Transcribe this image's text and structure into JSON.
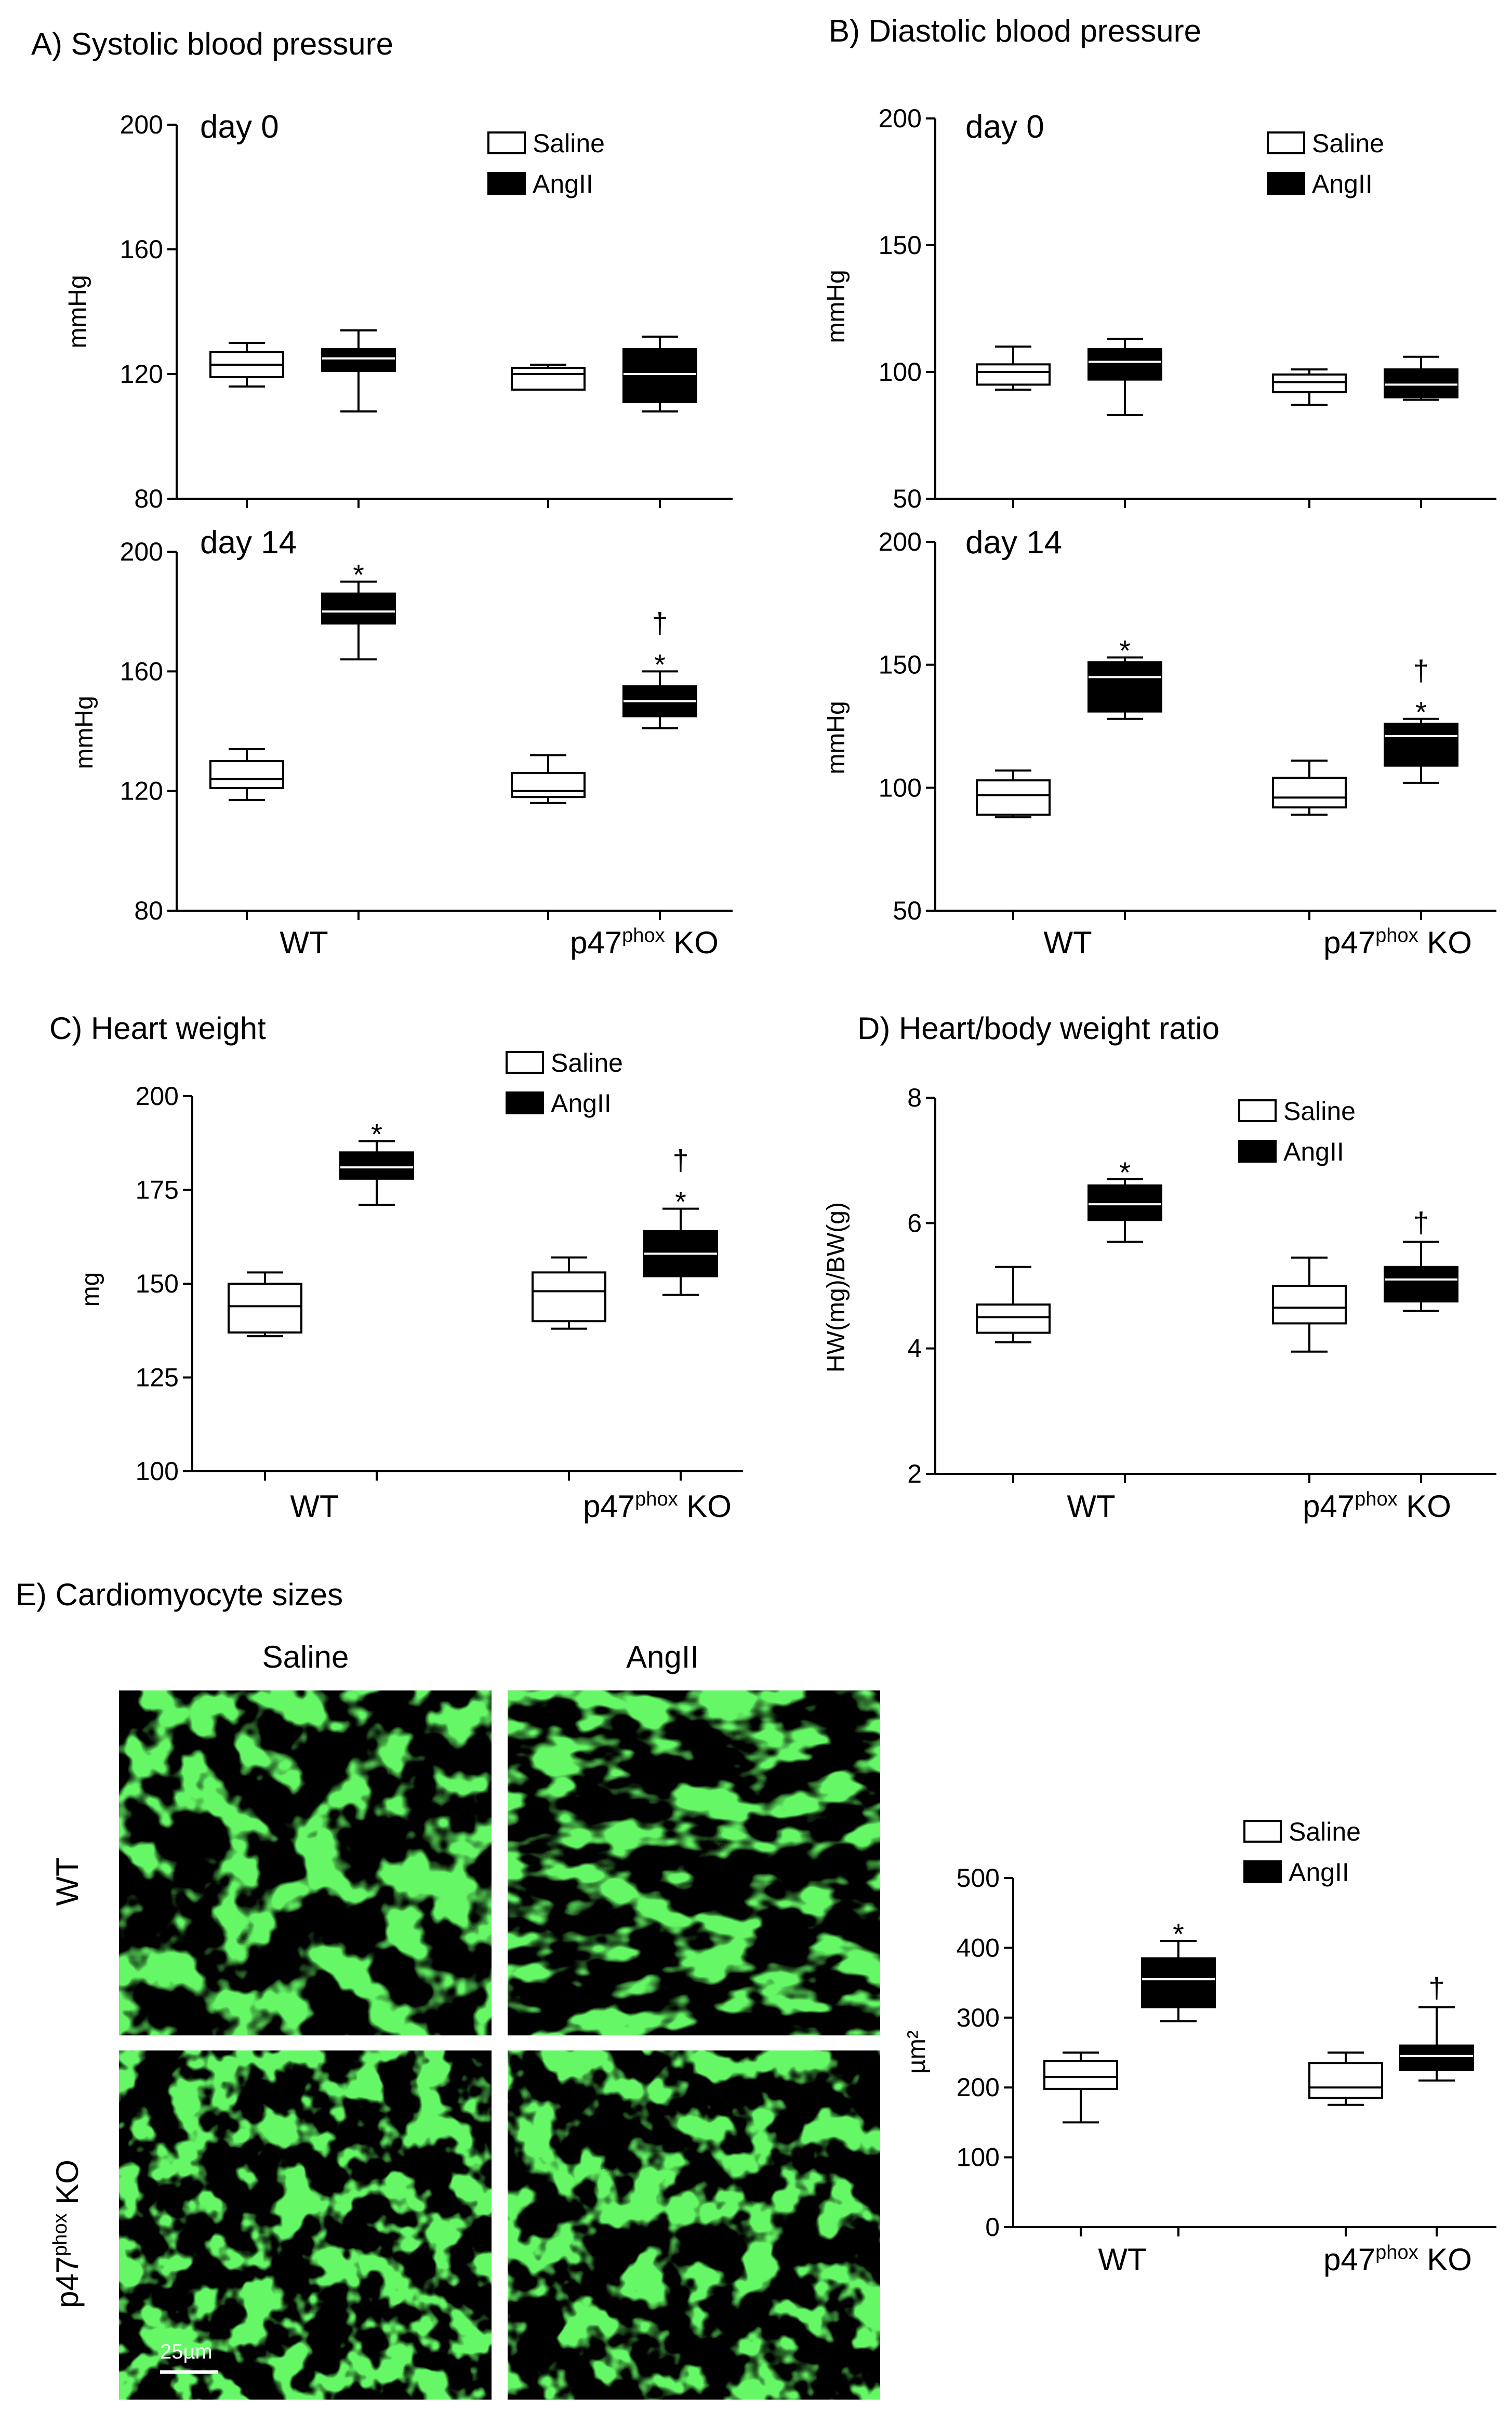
{
  "colors": {
    "saline_fill": "#ffffff",
    "angii_fill": "#000000",
    "stroke": "#000000",
    "micrograph_bg": "#000000",
    "micrograph_tissue": "#22ee22"
  },
  "legend": {
    "saline": "Saline",
    "angii": "AngII"
  },
  "groups": {
    "wt": "WT",
    "ko_base": "p47",
    "ko_sup": "phox",
    "ko_tail": " KO"
  },
  "chart_data": [
    {
      "id": "sbp_day0",
      "type": "box",
      "title": "A) Systolic blood pressure",
      "subtitle": "day 0",
      "ylabel": "mmHg",
      "ylim": [
        80,
        200
      ],
      "yticks": [
        80,
        120,
        160,
        200
      ],
      "show_groups": false,
      "legend": true,
      "boxes": [
        {
          "group": "WT",
          "series": "Saline",
          "min": 116,
          "q1": 119,
          "median": 123,
          "q3": 127,
          "max": 130
        },
        {
          "group": "WT",
          "series": "AngII",
          "min": 108,
          "q1": 121,
          "median": 125,
          "q3": 128,
          "max": 134
        },
        {
          "group": "p47phox KO",
          "series": "Saline",
          "min": 115,
          "q1": 115,
          "median": 120,
          "q3": 122,
          "max": 123
        },
        {
          "group": "p47phox KO",
          "series": "AngII",
          "min": 108,
          "q1": 111,
          "median": 120,
          "q3": 128,
          "max": 132
        }
      ],
      "marks": [
        "",
        "",
        "",
        ""
      ]
    },
    {
      "id": "sbp_day14",
      "type": "box",
      "subtitle": "day 14",
      "ylabel": "mmHg",
      "ylim": [
        80,
        200
      ],
      "yticks": [
        80,
        120,
        160,
        200
      ],
      "show_groups": true,
      "legend": false,
      "boxes": [
        {
          "group": "WT",
          "series": "Saline",
          "min": 117,
          "q1": 121,
          "median": 124,
          "q3": 130,
          "max": 134
        },
        {
          "group": "WT",
          "series": "AngII",
          "min": 164,
          "q1": 176,
          "median": 180,
          "q3": 186,
          "max": 190
        },
        {
          "group": "p47phox KO",
          "series": "Saline",
          "min": 116,
          "q1": 118,
          "median": 120,
          "q3": 126,
          "max": 132
        },
        {
          "group": "p47phox KO",
          "series": "AngII",
          "min": 141,
          "q1": 145,
          "median": 150,
          "q3": 155,
          "max": 160
        }
      ],
      "marks": [
        "",
        "*",
        "",
        "*†"
      ]
    },
    {
      "id": "dbp_day0",
      "type": "box",
      "title": "B) Diastolic blood pressure",
      "subtitle": "day 0",
      "ylabel": "mmHg",
      "ylim": [
        50,
        200
      ],
      "yticks": [
        50,
        100,
        150,
        200
      ],
      "show_groups": false,
      "legend": true,
      "boxes": [
        {
          "group": "WT",
          "series": "Saline",
          "min": 93,
          "q1": 95,
          "median": 100,
          "q3": 103,
          "max": 110
        },
        {
          "group": "WT",
          "series": "AngII",
          "min": 83,
          "q1": 97,
          "median": 104,
          "q3": 109,
          "max": 113
        },
        {
          "group": "p47phox KO",
          "series": "Saline",
          "min": 87,
          "q1": 92,
          "median": 96,
          "q3": 99,
          "max": 101
        },
        {
          "group": "p47phox KO",
          "series": "AngII",
          "min": 89,
          "q1": 90,
          "median": 95,
          "q3": 101,
          "max": 106
        }
      ],
      "marks": [
        "",
        "",
        "",
        ""
      ]
    },
    {
      "id": "dbp_day14",
      "type": "box",
      "subtitle": "day 14",
      "ylabel": "mmHg",
      "ylim": [
        50,
        200
      ],
      "yticks": [
        50,
        100,
        150,
        200
      ],
      "show_groups": true,
      "legend": false,
      "boxes": [
        {
          "group": "WT",
          "series": "Saline",
          "min": 88,
          "q1": 89,
          "median": 97,
          "q3": 103,
          "max": 107
        },
        {
          "group": "WT",
          "series": "AngII",
          "min": 128,
          "q1": 131,
          "median": 145,
          "q3": 151,
          "max": 153
        },
        {
          "group": "p47phox KO",
          "series": "Saline",
          "min": 89,
          "q1": 92,
          "median": 96,
          "q3": 104,
          "max": 111
        },
        {
          "group": "p47phox KO",
          "series": "AngII",
          "min": 102,
          "q1": 109,
          "median": 121,
          "q3": 126,
          "max": 128
        }
      ],
      "marks": [
        "",
        "*",
        "",
        "*†"
      ]
    },
    {
      "id": "heart_weight",
      "type": "box",
      "title": "C) Heart weight",
      "ylabel": "mg",
      "ylim": [
        100,
        200
      ],
      "yticks": [
        100,
        125,
        150,
        175,
        200
      ],
      "show_groups": true,
      "legend": true,
      "boxes": [
        {
          "group": "WT",
          "series": "Saline",
          "min": 136,
          "q1": 137,
          "median": 144,
          "q3": 150,
          "max": 153
        },
        {
          "group": "WT",
          "series": "AngII",
          "min": 171,
          "q1": 178,
          "median": 181,
          "q3": 185,
          "max": 188
        },
        {
          "group": "p47phox KO",
          "series": "Saline",
          "min": 138,
          "q1": 140,
          "median": 148,
          "q3": 153,
          "max": 157
        },
        {
          "group": "p47phox KO",
          "series": "AngII",
          "min": 147,
          "q1": 152,
          "median": 158,
          "q3": 164,
          "max": 170
        }
      ],
      "marks": [
        "",
        "*",
        "",
        "*†"
      ]
    },
    {
      "id": "hw_bw_ratio",
      "type": "box",
      "title": "D) Heart/body weight ratio",
      "ylabel": "HW(mg)/BW(g)",
      "ylim": [
        2,
        8
      ],
      "yticks": [
        2,
        4,
        6,
        8
      ],
      "show_groups": true,
      "legend": true,
      "boxes": [
        {
          "group": "WT",
          "series": "Saline",
          "min": 4.1,
          "q1": 4.25,
          "median": 4.5,
          "q3": 4.7,
          "max": 5.3
        },
        {
          "group": "WT",
          "series": "AngII",
          "min": 5.7,
          "q1": 6.05,
          "median": 6.3,
          "q3": 6.6,
          "max": 6.7
        },
        {
          "group": "p47phox KO",
          "series": "Saline",
          "min": 3.95,
          "q1": 4.4,
          "median": 4.65,
          "q3": 5.0,
          "max": 5.45
        },
        {
          "group": "p47phox KO",
          "series": "AngII",
          "min": 4.6,
          "q1": 4.75,
          "median": 5.1,
          "q3": 5.3,
          "max": 5.7
        }
      ],
      "marks": [
        "",
        "*",
        "",
        "†"
      ]
    },
    {
      "id": "cardiomyocyte_size",
      "type": "box",
      "title": "E) Cardiomyocyte sizes",
      "ylabel": "µm²",
      "ylim": [
        0,
        500
      ],
      "yticks": [
        0,
        100,
        200,
        300,
        400,
        500
      ],
      "show_groups": true,
      "legend": true,
      "boxes": [
        {
          "group": "WT",
          "series": "Saline",
          "min": 150,
          "q1": 198,
          "median": 215,
          "q3": 238,
          "max": 250
        },
        {
          "group": "WT",
          "series": "AngII",
          "min": 295,
          "q1": 315,
          "median": 355,
          "q3": 385,
          "max": 410
        },
        {
          "group": "p47phox KO",
          "series": "Saline",
          "min": 175,
          "q1": 185,
          "median": 200,
          "q3": 235,
          "max": 250
        },
        {
          "group": "p47phox KO",
          "series": "AngII",
          "min": 210,
          "q1": 225,
          "median": 245,
          "q3": 260,
          "max": 315
        }
      ],
      "marks": [
        "",
        "*",
        "",
        "†"
      ]
    }
  ],
  "micrographs": {
    "col_saline": "Saline",
    "col_angii": "AngII",
    "row_wt": "WT",
    "row_ko_base": "p47",
    "row_ko_sup": "phox",
    "row_ko_tail": " KO",
    "scale_label": "25µm"
  }
}
